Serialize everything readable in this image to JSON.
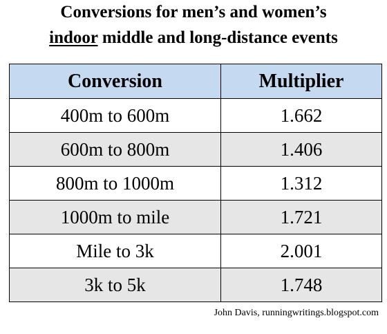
{
  "title": {
    "line1": "Conversions for men’s and women’s",
    "line2_emphasis": "indoor",
    "line2_rest": " middle and long-distance events"
  },
  "table": {
    "headers": [
      "Conversion",
      "Multiplier"
    ],
    "rows": [
      {
        "conversion": "400m to 600m",
        "multiplier": "1.662"
      },
      {
        "conversion": "600m to 800m",
        "multiplier": "1.406"
      },
      {
        "conversion": "800m to 1000m",
        "multiplier": "1.312"
      },
      {
        "conversion": "1000m to mile",
        "multiplier": "1.721"
      },
      {
        "conversion": "Mile to 3k",
        "multiplier": "2.001"
      },
      {
        "conversion": "3k to 5k",
        "multiplier": "1.748"
      }
    ]
  },
  "credit": "John Davis, runningwritings.blogspot.com",
  "colors": {
    "header_bg": "#c5d9f1",
    "shaded_row_bg": "#e6e6e6",
    "border": "#000000"
  }
}
